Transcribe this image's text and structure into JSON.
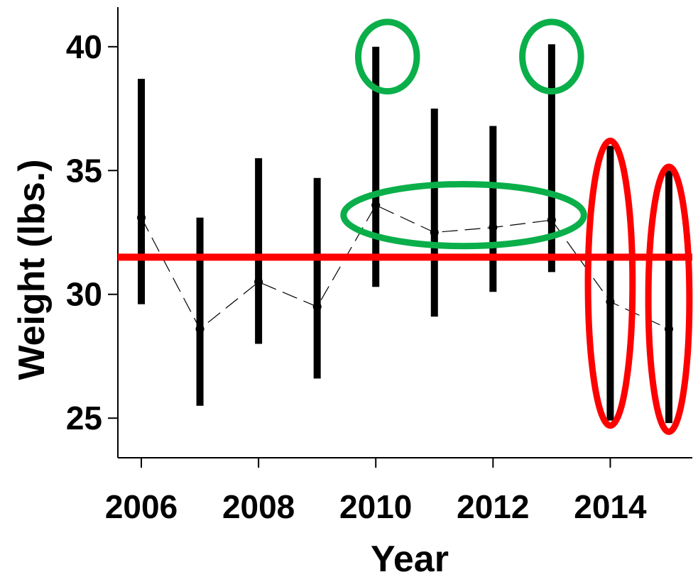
{
  "chart_data": {
    "type": "scatter",
    "title": "",
    "xlabel": "Year",
    "ylabel": "Weight (lbs.)",
    "xlim": [
      2005.6,
      2015.4
    ],
    "ylim": [
      23.4,
      41.6
    ],
    "x_ticks": [
      2006,
      2008,
      2010,
      2012,
      2014
    ],
    "y_ticks": [
      25,
      30,
      35,
      40
    ],
    "series": [
      {
        "x": [
          2006,
          2007,
          2008,
          2009,
          2010,
          2011,
          2012,
          2013,
          2014,
          2015
        ],
        "mean": [
          33.1,
          28.6,
          30.5,
          29.5,
          33.6,
          32.5,
          32.7,
          33.0,
          29.7,
          28.6
        ],
        "lower": [
          29.6,
          25.5,
          28.0,
          26.6,
          30.3,
          29.1,
          30.1,
          30.9,
          24.9,
          24.8
        ],
        "upper": [
          38.7,
          33.1,
          35.5,
          34.7,
          40.0,
          37.5,
          36.8,
          40.1,
          36.0,
          35.0
        ]
      }
    ],
    "reference_line": {
      "y": 31.5,
      "color": "#ff0000"
    },
    "annotations": [
      {
        "shape": "ellipse",
        "color": "#0aaf4a",
        "cx": 2010.2,
        "cy": 39.6,
        "rx": 0.5,
        "ry": 1.4
      },
      {
        "shape": "ellipse",
        "color": "#0aaf4a",
        "cx": 2013.0,
        "cy": 39.6,
        "rx": 0.5,
        "ry": 1.4
      },
      {
        "shape": "ellipse",
        "color": "#0aaf4a",
        "cx": 2011.5,
        "cy": 33.2,
        "rx": 2.05,
        "ry": 1.25
      },
      {
        "shape": "ellipse",
        "color": "#ff0000",
        "cx": 2014.0,
        "cy": 30.45,
        "rx": 0.38,
        "ry": 5.75
      },
      {
        "shape": "ellipse",
        "color": "#ff0000",
        "cx": 2015.0,
        "cy": 29.8,
        "rx": 0.35,
        "ry": 5.35
      }
    ]
  }
}
